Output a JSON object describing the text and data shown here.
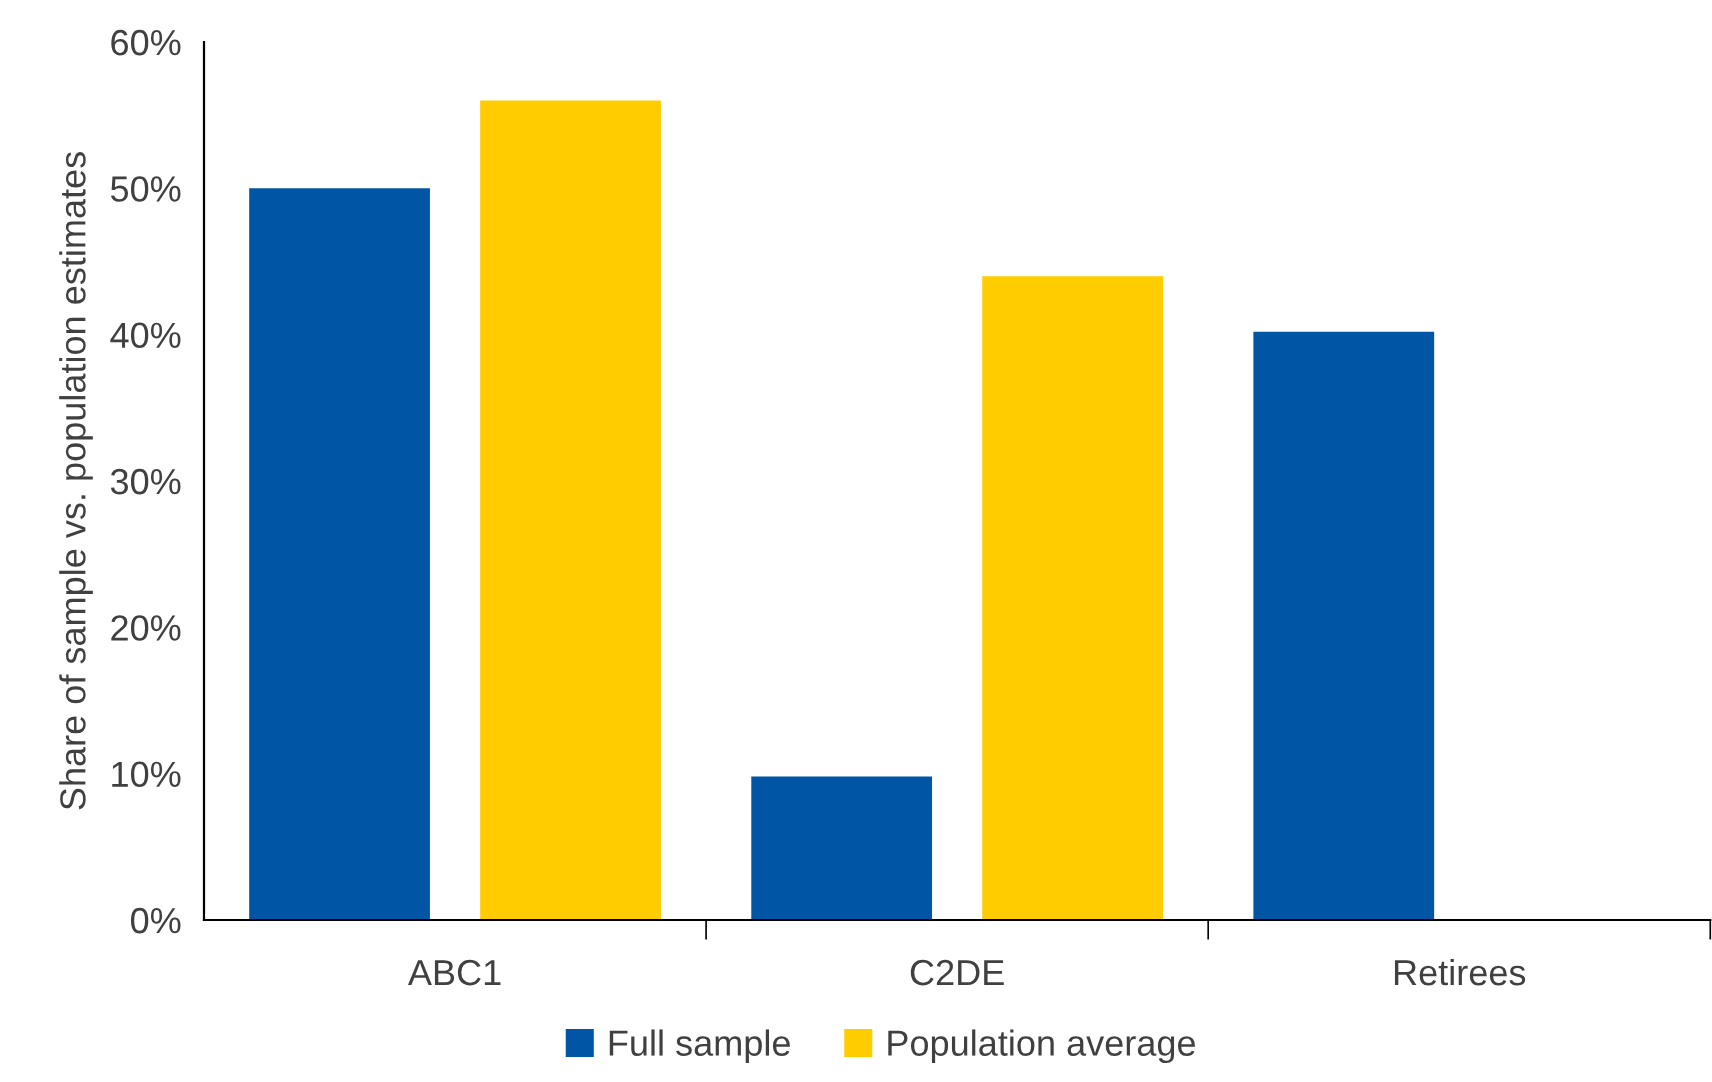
{
  "chart_data": {
    "type": "bar",
    "ylabel": "Share of sample vs. population estimates",
    "categories": [
      "ABC1",
      "C2DE",
      "Retirees"
    ],
    "series": [
      {
        "name": "Full sample",
        "color": "#0055a4",
        "values": [
          50,
          9.8,
          40.2
        ]
      },
      {
        "name": "Population average",
        "color": "#ffcc00",
        "values": [
          56,
          44,
          null
        ]
      }
    ],
    "ylim": [
      0,
      60
    ],
    "yticks": [
      {
        "value": 0,
        "label": "0%"
      },
      {
        "value": 10,
        "label": "10%"
      },
      {
        "value": 20,
        "label": "20%"
      },
      {
        "value": 30,
        "label": "30%"
      },
      {
        "value": 40,
        "label": "40%"
      },
      {
        "value": 50,
        "label": "50%"
      },
      {
        "value": 60,
        "label": "60%"
      }
    ],
    "grid": false,
    "legend": "bottom"
  }
}
